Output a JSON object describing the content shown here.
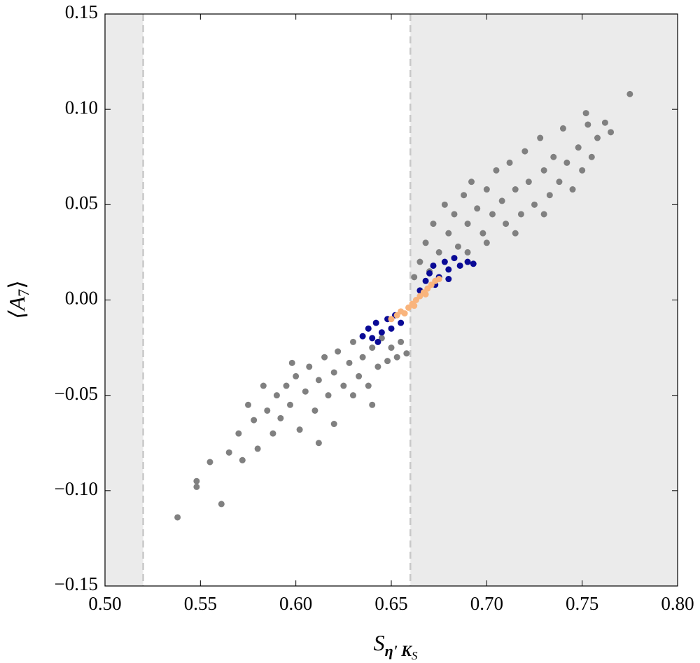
{
  "chart_data": {
    "type": "scatter",
    "xlabel": {
      "main": "S",
      "sub": "η' K",
      "subsub": "S"
    },
    "ylabel": {
      "open": "⟨A",
      "sub": "7",
      "close": "⟩"
    },
    "xlim": [
      0.5,
      0.8
    ],
    "ylim": [
      -0.15,
      0.15
    ],
    "xticks": [
      {
        "value": 0.5,
        "label": "0.50"
      },
      {
        "value": 0.55,
        "label": "0.55"
      },
      {
        "value": 0.6,
        "label": "0.60"
      },
      {
        "value": 0.65,
        "label": "0.65"
      },
      {
        "value": 0.7,
        "label": "0.70"
      },
      {
        "value": 0.75,
        "label": "0.75"
      },
      {
        "value": 0.8,
        "label": "0.80"
      }
    ],
    "yticks": [
      {
        "value": -0.15,
        "label": "−0.15"
      },
      {
        "value": -0.1,
        "label": "−0.10"
      },
      {
        "value": -0.05,
        "label": "−0.05"
      },
      {
        "value": 0.0,
        "label": "0.00"
      },
      {
        "value": 0.05,
        "label": "0.05"
      },
      {
        "value": 0.1,
        "label": "0.10"
      },
      {
        "value": 0.15,
        "label": "0.15"
      }
    ],
    "allowed_range": [
      0.52,
      0.66
    ],
    "shade_color": "#ebebeb",
    "series": [
      {
        "color": "#808080",
        "x": [
          0.538,
          0.561,
          0.548,
          0.548,
          0.555,
          0.565,
          0.57,
          0.572,
          0.578,
          0.58,
          0.585,
          0.588,
          0.59,
          0.592,
          0.595,
          0.597,
          0.6,
          0.602,
          0.605,
          0.607,
          0.61,
          0.612,
          0.615,
          0.617,
          0.62,
          0.622,
          0.625,
          0.628,
          0.63,
          0.633,
          0.635,
          0.638,
          0.64,
          0.643,
          0.645,
          0.648,
          0.65,
          0.653,
          0.655,
          0.658,
          0.612,
          0.62,
          0.575,
          0.583,
          0.598,
          0.63,
          0.64,
          0.662,
          0.665,
          0.668,
          0.67,
          0.672,
          0.675,
          0.678,
          0.68,
          0.683,
          0.685,
          0.688,
          0.69,
          0.692,
          0.695,
          0.698,
          0.7,
          0.703,
          0.705,
          0.708,
          0.71,
          0.712,
          0.715,
          0.718,
          0.72,
          0.722,
          0.725,
          0.728,
          0.73,
          0.733,
          0.735,
          0.738,
          0.74,
          0.742,
          0.745,
          0.748,
          0.75,
          0.753,
          0.755,
          0.758,
          0.762,
          0.765,
          0.775,
          0.752,
          0.69,
          0.7,
          0.715,
          0.73
        ],
        "y": [
          -0.114,
          -0.107,
          -0.095,
          -0.098,
          -0.085,
          -0.08,
          -0.07,
          -0.084,
          -0.063,
          -0.078,
          -0.058,
          -0.07,
          -0.05,
          -0.062,
          -0.045,
          -0.055,
          -0.04,
          -0.068,
          -0.048,
          -0.035,
          -0.058,
          -0.042,
          -0.03,
          -0.05,
          -0.038,
          -0.027,
          -0.045,
          -0.033,
          -0.022,
          -0.04,
          -0.03,
          -0.045,
          -0.025,
          -0.035,
          -0.02,
          -0.032,
          -0.025,
          -0.03,
          -0.022,
          -0.028,
          -0.075,
          -0.065,
          -0.055,
          -0.045,
          -0.033,
          -0.05,
          -0.055,
          0.012,
          0.02,
          0.03,
          0.015,
          0.04,
          0.025,
          0.05,
          0.035,
          0.045,
          0.028,
          0.055,
          0.04,
          0.062,
          0.048,
          0.035,
          0.058,
          0.045,
          0.068,
          0.052,
          0.04,
          0.072,
          0.058,
          0.045,
          0.078,
          0.062,
          0.05,
          0.085,
          0.068,
          0.055,
          0.075,
          0.062,
          0.09,
          0.072,
          0.058,
          0.08,
          0.068,
          0.092,
          0.075,
          0.085,
          0.093,
          0.088,
          0.108,
          0.098,
          0.025,
          0.03,
          0.035,
          0.045
        ]
      },
      {
        "color": "#0a0a96",
        "x": [
          0.635,
          0.638,
          0.64,
          0.642,
          0.645,
          0.648,
          0.65,
          0.652,
          0.655,
          0.643,
          0.668,
          0.67,
          0.672,
          0.675,
          0.678,
          0.68,
          0.683,
          0.686,
          0.69,
          0.693,
          0.665,
          0.673,
          0.68
        ],
        "y": [
          -0.019,
          -0.015,
          -0.02,
          -0.012,
          -0.017,
          -0.01,
          -0.015,
          -0.008,
          -0.012,
          -0.022,
          0.01,
          0.014,
          0.018,
          0.012,
          0.02,
          0.016,
          0.022,
          0.018,
          0.02,
          0.019,
          0.005,
          0.008,
          0.011
        ]
      },
      {
        "color": "#f9b47c",
        "x": [
          0.65,
          0.653,
          0.655,
          0.657,
          0.659,
          0.661,
          0.663,
          0.665,
          0.667,
          0.669,
          0.671,
          0.673,
          0.675,
          0.662,
          0.668
        ],
        "y": [
          -0.01,
          -0.008,
          -0.006,
          -0.007,
          -0.004,
          -0.002,
          0.0,
          0.002,
          0.004,
          0.006,
          0.008,
          0.01,
          0.011,
          -0.003,
          0.003
        ]
      }
    ]
  }
}
